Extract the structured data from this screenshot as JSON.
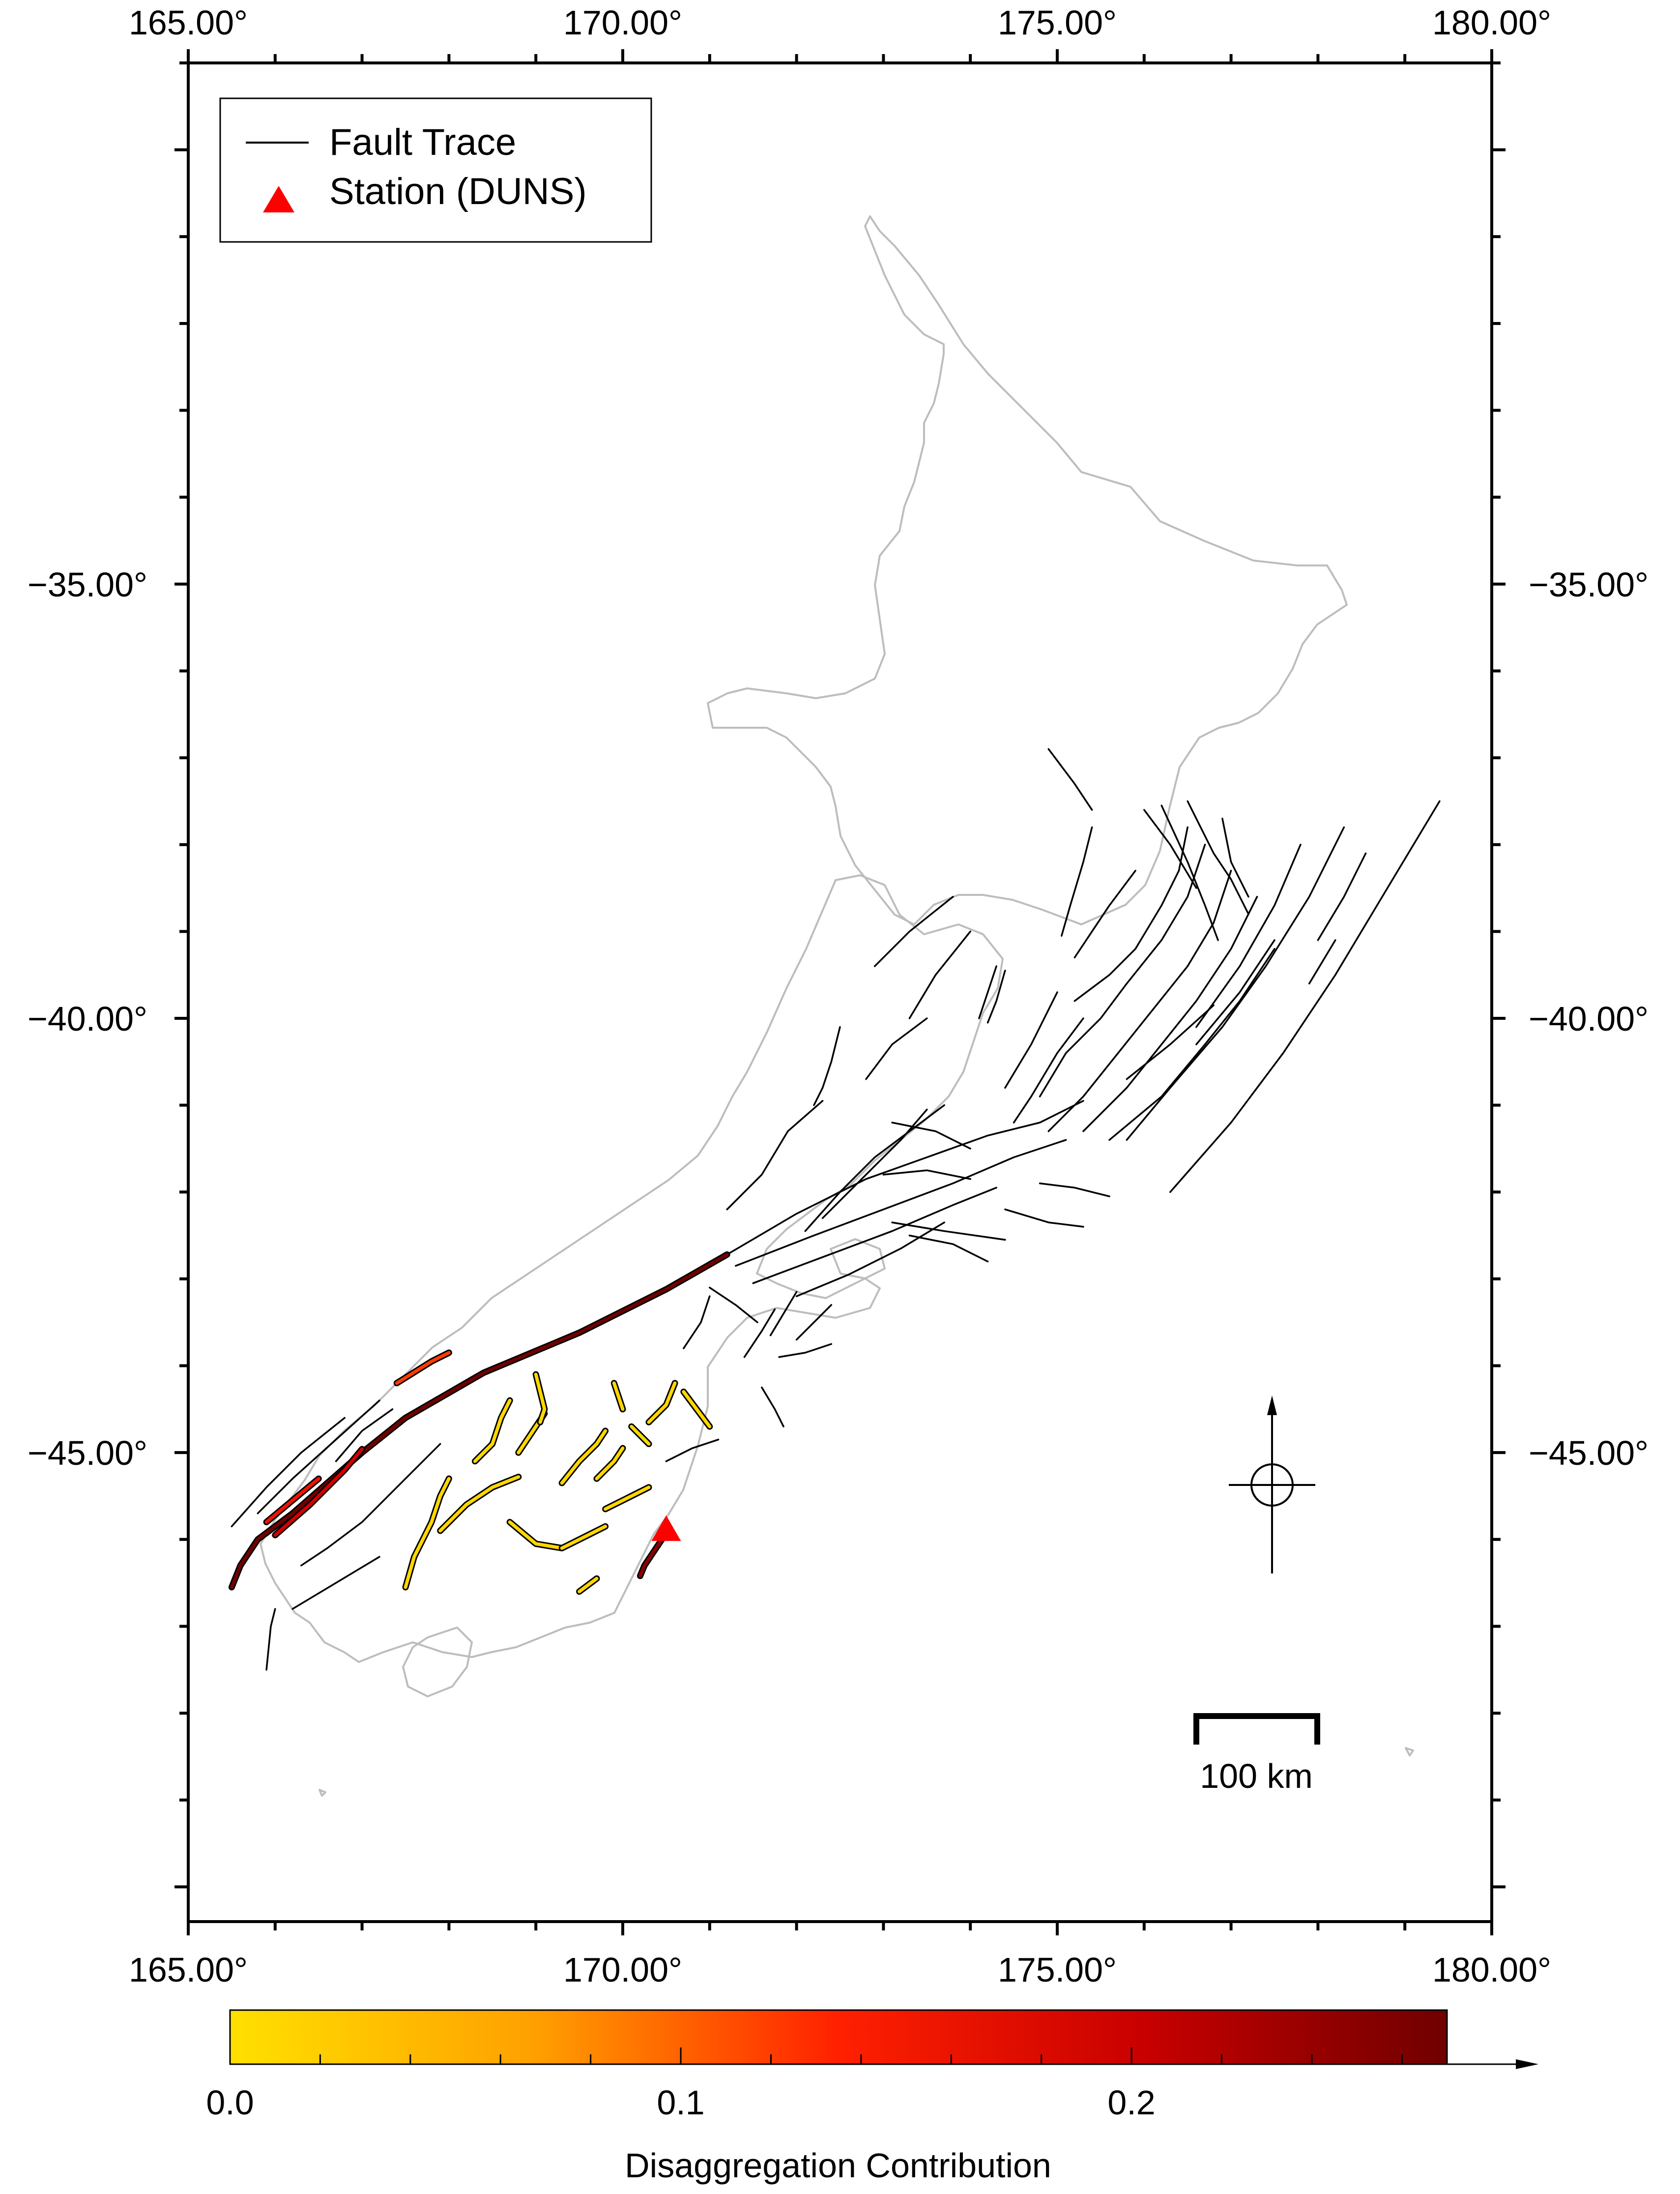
{
  "map": {
    "lon_range": [
      165,
      180
    ],
    "lat_range": [
      -50.4,
      -29.0
    ],
    "x_tick_labels": [
      "165.00°",
      "170.00°",
      "175.00°",
      "180.00°"
    ],
    "x_tick_values": [
      165,
      170,
      175,
      180
    ],
    "y_tick_labels": [
      "−35.00°",
      "−40.00°",
      "−45.00°"
    ],
    "y_tick_values": [
      -35,
      -40,
      -45
    ]
  },
  "legend": {
    "items": [
      {
        "label": "Fault Trace",
        "symbol": "line",
        "color": "#000000"
      },
      {
        "label": "Station (DUNS)",
        "symbol": "triangle",
        "color": "#ff0000"
      }
    ]
  },
  "station": {
    "name": "DUNS",
    "lon": 170.5,
    "lat": -45.87,
    "color": "#ff0000"
  },
  "scale_bar": {
    "label": "100 km"
  },
  "compass": {
    "name": "north-arrow"
  },
  "colorbar": {
    "title": "Disaggregation Contribution",
    "tick_labels": [
      "0.0",
      "0.1",
      "0.2"
    ],
    "tick_values": [
      0.0,
      0.1,
      0.2
    ],
    "max": 0.27,
    "colors": [
      "#ffe000",
      "#ffa000",
      "#ff2000",
      "#d00000",
      "#700000"
    ]
  },
  "faults_colored": [
    {
      "contribution": 0.27,
      "points": [
        [
          171.2,
          -42.72
        ],
        [
          170.5,
          -43.12
        ],
        [
          169.5,
          -43.62
        ],
        [
          168.4,
          -44.08
        ],
        [
          167.5,
          -44.6
        ],
        [
          167.0,
          -45.0
        ],
        [
          166.6,
          -45.35
        ],
        [
          166.2,
          -45.7
        ],
        [
          165.8,
          -46.0
        ],
        [
          165.6,
          -46.3
        ],
        [
          165.5,
          -46.55
        ]
      ]
    },
    {
      "contribution": 0.2,
      "points": [
        [
          166.0,
          -45.95
        ],
        [
          166.4,
          -45.6
        ],
        [
          166.8,
          -45.2
        ],
        [
          167.0,
          -44.96
        ]
      ]
    },
    {
      "contribution": 0.16,
      "points": [
        [
          165.9,
          -45.8
        ],
        [
          166.2,
          -45.55
        ],
        [
          166.5,
          -45.3
        ]
      ]
    },
    {
      "contribution": 0.12,
      "points": [
        [
          167.4,
          -44.2
        ],
        [
          167.8,
          -43.95
        ],
        [
          168.0,
          -43.85
        ]
      ]
    },
    {
      "contribution": 0.25,
      "points": [
        [
          170.2,
          -46.42
        ],
        [
          170.25,
          -46.3
        ],
        [
          170.35,
          -46.15
        ],
        [
          170.45,
          -46.0
        ],
        [
          170.5,
          -45.9
        ]
      ]
    },
    {
      "contribution": 0.01,
      "points": [
        [
          167.5,
          -46.55
        ],
        [
          167.6,
          -46.2
        ],
        [
          167.8,
          -45.8
        ],
        [
          167.9,
          -45.5
        ],
        [
          168.0,
          -45.3
        ]
      ]
    },
    {
      "contribution": 0.01,
      "points": [
        [
          167.9,
          -45.9
        ],
        [
          168.2,
          -45.6
        ],
        [
          168.5,
          -45.4
        ],
        [
          168.8,
          -45.28
        ]
      ]
    },
    {
      "contribution": 0.01,
      "points": [
        [
          168.3,
          -45.1
        ],
        [
          168.5,
          -44.9
        ],
        [
          168.6,
          -44.6
        ],
        [
          168.7,
          -44.4
        ]
      ]
    },
    {
      "contribution": 0.01,
      "points": [
        [
          168.8,
          -45.0
        ],
        [
          169.0,
          -44.7
        ],
        [
          169.1,
          -44.55
        ]
      ]
    },
    {
      "contribution": 0.01,
      "points": [
        [
          169.3,
          -45.35
        ],
        [
          169.5,
          -45.1
        ],
        [
          169.7,
          -44.9
        ],
        [
          169.8,
          -44.75
        ]
      ]
    },
    {
      "contribution": 0.01,
      "points": [
        [
          169.7,
          -45.3
        ],
        [
          169.9,
          -45.1
        ],
        [
          170.0,
          -44.95
        ]
      ]
    },
    {
      "contribution": 0.01,
      "points": [
        [
          169.8,
          -45.65
        ],
        [
          170.1,
          -45.5
        ],
        [
          170.3,
          -45.4
        ]
      ]
    },
    {
      "contribution": 0.01,
      "points": [
        [
          168.7,
          -45.8
        ],
        [
          169.0,
          -46.05
        ],
        [
          169.3,
          -46.1
        ]
      ]
    },
    {
      "contribution": 0.01,
      "points": [
        [
          169.3,
          -46.1
        ],
        [
          169.6,
          -45.95
        ],
        [
          169.8,
          -45.85
        ]
      ]
    },
    {
      "contribution": 0.01,
      "points": [
        [
          169.0,
          -44.1
        ],
        [
          169.1,
          -44.5
        ],
        [
          169.05,
          -44.65
        ]
      ]
    },
    {
      "contribution": 0.01,
      "points": [
        [
          169.9,
          -44.2
        ],
        [
          170.0,
          -44.5
        ]
      ]
    },
    {
      "contribution": 0.01,
      "points": [
        [
          170.3,
          -44.65
        ],
        [
          170.5,
          -44.45
        ],
        [
          170.6,
          -44.2
        ]
      ]
    },
    {
      "contribution": 0.01,
      "points": [
        [
          170.7,
          -44.3
        ],
        [
          170.85,
          -44.5
        ],
        [
          171.0,
          -44.7
        ]
      ]
    },
    {
      "contribution": 0.01,
      "points": [
        [
          170.1,
          -44.7
        ],
        [
          170.3,
          -44.9
        ]
      ]
    },
    {
      "contribution": 0.01,
      "points": [
        [
          169.5,
          -46.6
        ],
        [
          169.7,
          -46.45
        ]
      ]
    }
  ],
  "faults_plain": [
    [
      [
        176.5,
        -37.5
      ],
      [
        176.8,
        -38.1
      ],
      [
        177.0,
        -38.4
      ],
      [
        177.2,
        -38.8
      ]
    ],
    [
      [
        176.2,
        -37.55
      ],
      [
        176.5,
        -38.2
      ],
      [
        176.7,
        -38.7
      ],
      [
        176.85,
        -39.1
      ]
    ],
    [
      [
        176.0,
        -37.6
      ],
      [
        176.3,
        -38.0
      ],
      [
        176.6,
        -38.5
      ]
    ],
    [
      [
        176.9,
        -37.7
      ],
      [
        177.0,
        -38.2
      ],
      [
        177.2,
        -38.6
      ]
    ],
    [
      [
        176.5,
        -37.8
      ],
      [
        176.4,
        -38.3
      ],
      [
        176.2,
        -38.7
      ],
      [
        175.9,
        -39.2
      ],
      [
        175.6,
        -39.5
      ],
      [
        175.2,
        -39.8
      ]
    ],
    [
      [
        176.7,
        -38.0
      ],
      [
        176.5,
        -38.6
      ],
      [
        176.2,
        -39.1
      ],
      [
        175.8,
        -39.6
      ],
      [
        175.5,
        -40.0
      ],
      [
        175.1,
        -40.4
      ],
      [
        174.8,
        -40.9
      ]
    ],
    [
      [
        177.0,
        -38.3
      ],
      [
        176.8,
        -38.9
      ],
      [
        176.5,
        -39.4
      ],
      [
        176.1,
        -39.9
      ],
      [
        175.7,
        -40.4
      ],
      [
        175.3,
        -40.9
      ],
      [
        174.9,
        -41.3
      ]
    ],
    [
      [
        177.3,
        -38.6
      ],
      [
        177.0,
        -39.2
      ],
      [
        176.6,
        -39.8
      ],
      [
        176.2,
        -40.3
      ],
      [
        175.8,
        -40.8
      ],
      [
        175.3,
        -41.3
      ]
    ],
    [
      [
        177.5,
        -39.2
      ],
      [
        177.1,
        -39.8
      ],
      [
        176.7,
        -40.3
      ],
      [
        176.2,
        -40.9
      ],
      [
        175.6,
        -41.4
      ]
    ],
    [
      [
        179.4,
        -37.5
      ],
      [
        178.8,
        -38.5
      ],
      [
        178.2,
        -39.5
      ],
      [
        177.6,
        -40.4
      ],
      [
        177.0,
        -41.2
      ],
      [
        176.3,
        -42.0
      ]
    ],
    [
      [
        178.3,
        -37.8
      ],
      [
        177.9,
        -38.6
      ],
      [
        177.4,
        -39.4
      ],
      [
        176.9,
        -40.1
      ],
      [
        176.3,
        -40.8
      ],
      [
        175.8,
        -41.4
      ]
    ],
    [
      [
        177.8,
        -38.0
      ],
      [
        177.5,
        -38.7
      ],
      [
        177.1,
        -39.4
      ],
      [
        176.6,
        -40.1
      ]
    ],
    [
      [
        175.3,
        -40.0
      ],
      [
        175.0,
        -40.4
      ],
      [
        174.7,
        -40.9
      ],
      [
        174.5,
        -41.2
      ]
    ],
    [
      [
        175.0,
        -39.7
      ],
      [
        174.7,
        -40.3
      ],
      [
        174.4,
        -40.8
      ]
    ],
    [
      [
        174.3,
        -39.4
      ],
      [
        174.2,
        -39.7
      ],
      [
        174.1,
        -40.0
      ]
    ],
    [
      [
        174.4,
        -39.45
      ],
      [
        174.3,
        -39.8
      ],
      [
        174.2,
        -40.05
      ]
    ],
    [
      [
        171.2,
        -42.72
      ],
      [
        172.0,
        -42.25
      ],
      [
        172.8,
        -41.85
      ],
      [
        173.5,
        -41.6
      ],
      [
        174.2,
        -41.35
      ],
      [
        174.8,
        -41.2
      ],
      [
        175.3,
        -40.95
      ]
    ],
    [
      [
        171.3,
        -42.85
      ],
      [
        172.2,
        -42.5
      ],
      [
        173.0,
        -42.2
      ],
      [
        173.8,
        -41.9
      ],
      [
        174.5,
        -41.6
      ],
      [
        175.1,
        -41.4
      ]
    ],
    [
      [
        171.5,
        -43.05
      ],
      [
        172.3,
        -42.75
      ],
      [
        173.1,
        -42.45
      ],
      [
        173.8,
        -42.15
      ],
      [
        174.3,
        -41.95
      ]
    ],
    [
      [
        172.0,
        -43.2
      ],
      [
        172.6,
        -42.95
      ],
      [
        173.2,
        -42.65
      ],
      [
        173.7,
        -42.35
      ]
    ],
    [
      [
        172.3,
        -42.3
      ],
      [
        172.8,
        -41.8
      ],
      [
        173.2,
        -41.4
      ],
      [
        173.5,
        -41.05
      ]
    ],
    [
      [
        172.1,
        -42.45
      ],
      [
        172.5,
        -42.0
      ],
      [
        172.9,
        -41.6
      ],
      [
        173.3,
        -41.3
      ],
      [
        173.7,
        -41.0
      ]
    ],
    [
      [
        173.3,
        -42.5
      ],
      [
        173.8,
        -42.6
      ],
      [
        174.2,
        -42.8
      ]
    ],
    [
      [
        173.1,
        -42.35
      ],
      [
        173.7,
        -42.45
      ],
      [
        174.4,
        -42.55
      ]
    ],
    [
      [
        173.0,
        -41.8
      ],
      [
        173.5,
        -41.75
      ],
      [
        174.0,
        -41.85
      ]
    ],
    [
      [
        172.0,
        -43.7
      ],
      [
        172.2,
        -43.5
      ],
      [
        172.4,
        -43.3
      ]
    ],
    [
      [
        171.7,
        -43.65
      ],
      [
        171.85,
        -43.4
      ],
      [
        172.0,
        -43.15
      ]
    ],
    [
      [
        171.4,
        -43.9
      ],
      [
        171.6,
        -43.6
      ],
      [
        171.75,
        -43.35
      ]
    ],
    [
      [
        171.0,
        -43.1
      ],
      [
        171.3,
        -43.3
      ],
      [
        171.55,
        -43.5
      ]
    ],
    [
      [
        170.7,
        -43.8
      ],
      [
        170.9,
        -43.5
      ],
      [
        171.0,
        -43.2
      ]
    ],
    [
      [
        171.6,
        -44.25
      ],
      [
        171.75,
        -44.5
      ],
      [
        171.85,
        -44.7
      ]
    ],
    [
      [
        171.8,
        -43.9
      ],
      [
        172.1,
        -43.85
      ],
      [
        172.4,
        -43.75
      ]
    ],
    [
      [
        166.8,
        -44.6
      ],
      [
        166.3,
        -45.0
      ],
      [
        165.9,
        -45.4
      ],
      [
        165.5,
        -45.85
      ]
    ],
    [
      [
        167.2,
        -44.4
      ],
      [
        166.7,
        -44.85
      ],
      [
        166.2,
        -45.3
      ],
      [
        165.8,
        -45.7
      ]
    ],
    [
      [
        167.35,
        -44.5
      ],
      [
        167.0,
        -44.75
      ],
      [
        166.7,
        -45.1
      ]
    ],
    [
      [
        167.9,
        -44.9
      ],
      [
        167.4,
        -45.4
      ],
      [
        167.0,
        -45.8
      ],
      [
        166.6,
        -46.1
      ],
      [
        166.3,
        -46.3
      ]
    ],
    [
      [
        172.5,
        -40.1
      ],
      [
        172.4,
        -40.5
      ],
      [
        172.3,
        -40.8
      ],
      [
        172.2,
        -41.0
      ]
    ],
    [
      [
        172.3,
        -40.95
      ],
      [
        171.9,
        -41.3
      ],
      [
        171.6,
        -41.8
      ],
      [
        171.2,
        -42.2
      ]
    ],
    [
      [
        173.5,
        -40.0
      ],
      [
        173.1,
        -40.3
      ],
      [
        172.8,
        -40.7
      ]
    ],
    [
      [
        173.8,
        -38.6
      ],
      [
        173.3,
        -39.0
      ],
      [
        172.9,
        -39.4
      ]
    ],
    [
      [
        174.0,
        -39.0
      ],
      [
        173.6,
        -39.5
      ],
      [
        173.3,
        -40.0
      ]
    ],
    [
      [
        175.4,
        -37.8
      ],
      [
        175.3,
        -38.2
      ],
      [
        175.15,
        -38.7
      ],
      [
        175.05,
        -39.05
      ]
    ],
    [
      [
        175.9,
        -38.3
      ],
      [
        175.6,
        -38.7
      ],
      [
        175.4,
        -39.0
      ],
      [
        175.2,
        -39.3
      ]
    ],
    [
      [
        174.9,
        -36.9
      ],
      [
        175.2,
        -37.3
      ],
      [
        175.4,
        -37.6
      ]
    ],
    [
      [
        165.9,
        -47.5
      ],
      [
        165.95,
        -47.0
      ],
      [
        166.0,
        -46.8
      ]
    ],
    [
      [
        166.2,
        -46.8
      ],
      [
        166.7,
        -46.5
      ],
      [
        167.2,
        -46.2
      ]
    ],
    [
      [
        170.5,
        -45.1
      ],
      [
        170.8,
        -44.95
      ],
      [
        171.1,
        -44.85
      ]
    ],
    [
      [
        173.1,
        -41.2
      ],
      [
        173.6,
        -41.3
      ],
      [
        174.0,
        -41.5
      ]
    ],
    [
      [
        174.4,
        -42.2
      ],
      [
        174.9,
        -42.35
      ],
      [
        175.3,
        -42.4
      ]
    ],
    [
      [
        174.8,
        -41.9
      ],
      [
        175.2,
        -41.95
      ],
      [
        175.6,
        -42.05
      ]
    ],
    [
      [
        175.8,
        -40.7
      ],
      [
        176.3,
        -40.3
      ],
      [
        176.8,
        -39.85
      ]
    ],
    [
      [
        176.6,
        -40.3
      ],
      [
        177.1,
        -39.7
      ],
      [
        177.5,
        -39.1
      ]
    ],
    [
      [
        178.0,
        -39.1
      ],
      [
        178.3,
        -38.6
      ],
      [
        178.55,
        -38.1
      ]
    ],
    [
      [
        177.9,
        -39.6
      ],
      [
        178.2,
        -39.1
      ]
    ]
  ]
}
